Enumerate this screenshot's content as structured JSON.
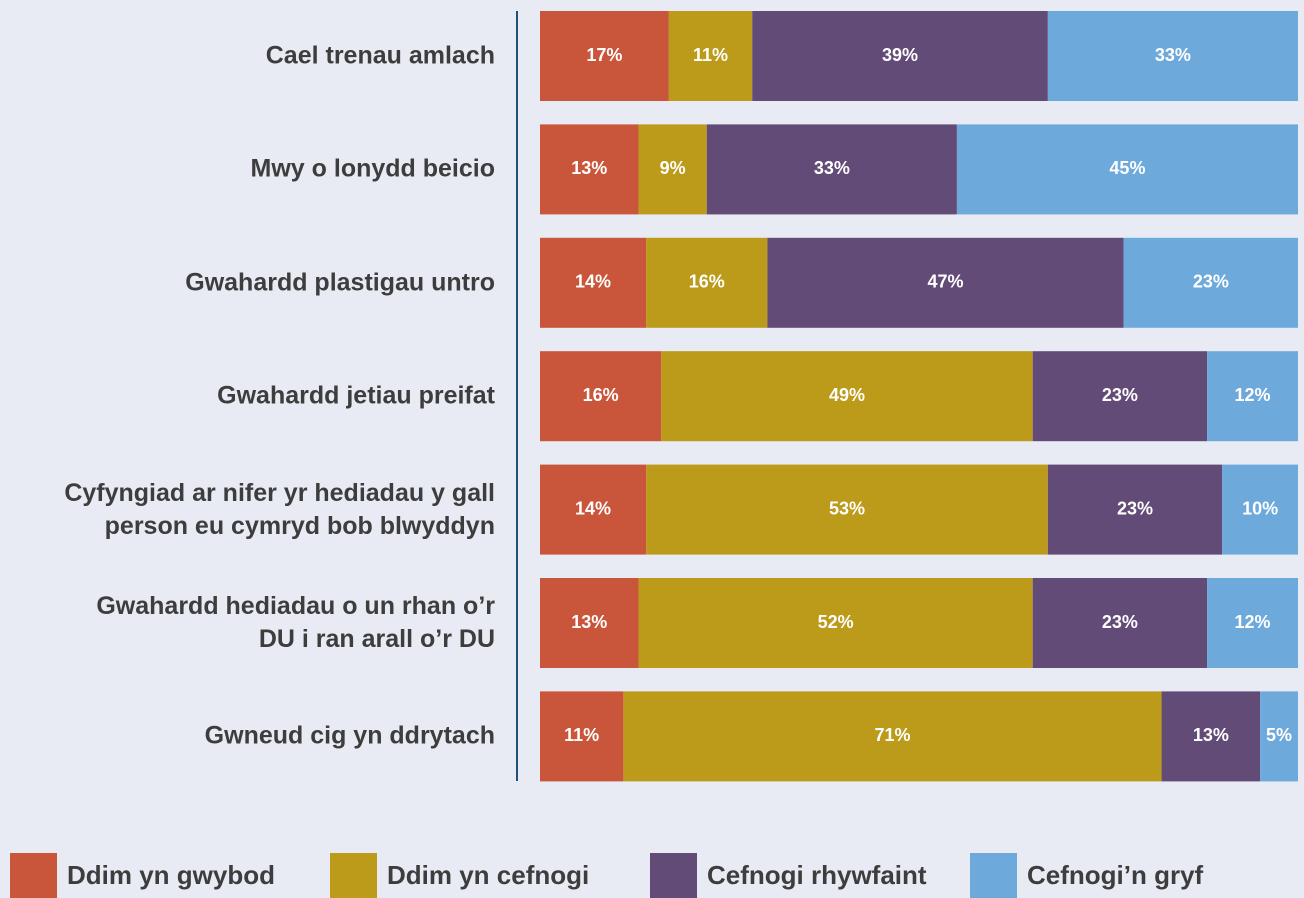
{
  "chart_data": {
    "type": "stacked-bar-horizontal",
    "categories": [
      "Cael trenau amlach",
      "Mwy o lonydd beicio",
      "Gwahardd plastigau untro",
      "Gwahardd jetiau preifat",
      "Cyfyngiad ar nifer yr hediadau y gall\nperson eu cymryd bob blwyddyn",
      "Gwahardd hediadau o un rhan o’r\nDU i ran arall o’r DU",
      "Gwneud cig yn ddrytach"
    ],
    "series": [
      {
        "name": "Ddim yn gwybod",
        "color": "#c9553a",
        "values": [
          17,
          13,
          14,
          16,
          14,
          13,
          11
        ],
        "value_labels": [
          "17%",
          "13%",
          "14%",
          "16%",
          "14%",
          "13%",
          "11%"
        ]
      },
      {
        "name": "Ddim yn cefnogi",
        "color": "#bc9a1a",
        "values": [
          11,
          9,
          16,
          49,
          53,
          52,
          71
        ],
        "value_labels": [
          "11%",
          "9%",
          "16%",
          "49%",
          "53%",
          "52%",
          "71%"
        ]
      },
      {
        "name": "Cefnogi rhywfaint",
        "color": "#634b77",
        "values": [
          39,
          33,
          47,
          23,
          23,
          23,
          13
        ],
        "value_labels": [
          "39%",
          "33%",
          "47%",
          "23%",
          "23%",
          "23%",
          "13%"
        ]
      },
      {
        "name": "Cefnogi’n gryf",
        "color": "#6ea9dc",
        "values": [
          33,
          45,
          23,
          12,
          10,
          12,
          5
        ],
        "value_labels": [
          "33%",
          "45%",
          "23%",
          "12%",
          "10%",
          "12%",
          "5%"
        ]
      }
    ],
    "xlim": [
      0,
      100
    ]
  }
}
